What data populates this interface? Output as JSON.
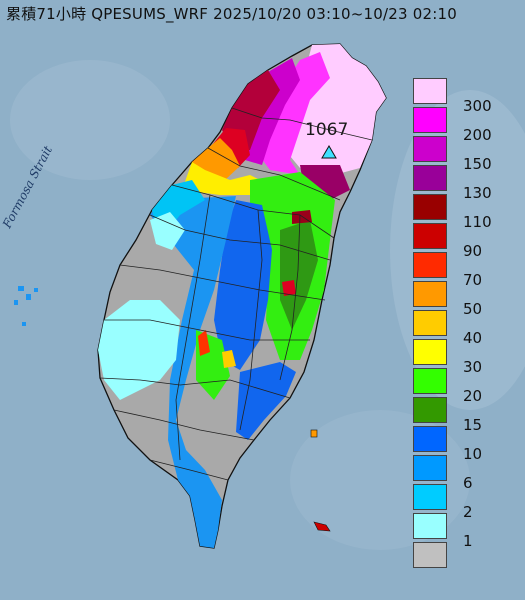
{
  "title": "累積71小時 QPESUMS_WRF 2025/10/20 03:10~10/23 02:10",
  "strait_label": "Formosa Strait",
  "peak_label": "1067",
  "legend": {
    "labels": [
      "300",
      "200",
      "150",
      "130",
      "110",
      "90",
      "70",
      "50",
      "40",
      "30",
      "20",
      "15",
      "10",
      "6",
      "2",
      "1"
    ],
    "colors": [
      "#ffccff",
      "#ff00ff",
      "#cc00cc",
      "#990099",
      "#990000",
      "#cc0000",
      "#ff2a00",
      "#ff9900",
      "#ffcc00",
      "#ffff00",
      "#33ff00",
      "#339900",
      "#0066ff",
      "#0099ff",
      "#00ccff",
      "#99ffff",
      "#c0c0c0"
    ]
  },
  "colors": {
    "sea": "#8fb0c8",
    "land_no_data": "#a9a9a9",
    "marker": "#3fe0ff"
  }
}
